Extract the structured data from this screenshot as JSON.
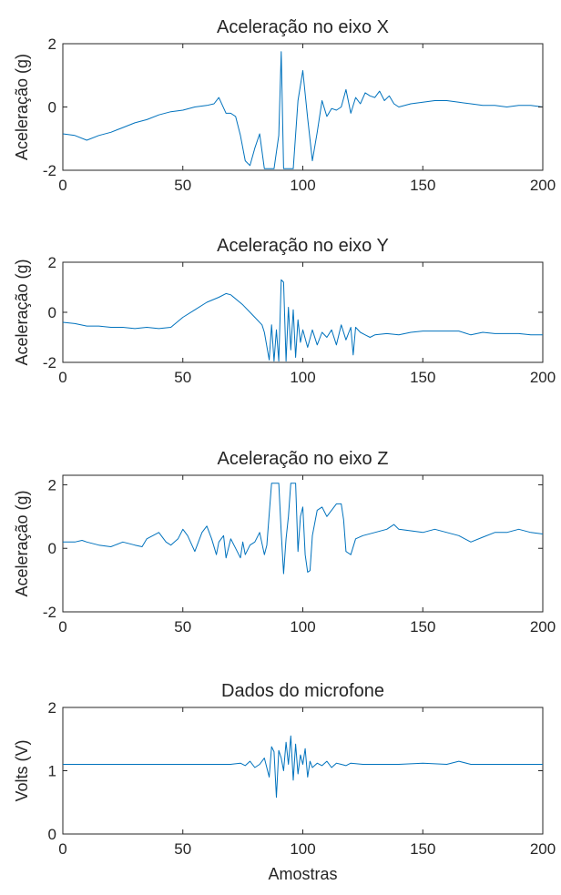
{
  "chart_data": [
    {
      "type": "line",
      "title": "Aceleração no eixo X",
      "xlabel": "",
      "ylabel": "Aceleração (g)",
      "xlim": [
        0,
        200
      ],
      "ylim": [
        -2,
        2
      ],
      "xticks": [
        0,
        50,
        100,
        150,
        200
      ],
      "yticks": [
        -2,
        0,
        2
      ],
      "grid": false,
      "series": [
        {
          "color": "#0072BD",
          "x": [
            0,
            5,
            10,
            15,
            20,
            25,
            30,
            35,
            40,
            45,
            50,
            55,
            60,
            63,
            65,
            68,
            70,
            72,
            74,
            76,
            78,
            80,
            82,
            84,
            86,
            88,
            90,
            91,
            92,
            94,
            96,
            98,
            100,
            102,
            104,
            106,
            108,
            110,
            112,
            114,
            116,
            118,
            120,
            122,
            124,
            126,
            128,
            130,
            132,
            134,
            136,
            138,
            140,
            145,
            150,
            155,
            160,
            165,
            170,
            175,
            180,
            185,
            190,
            195,
            200
          ],
          "y": [
            -0.85,
            -0.9,
            -1.05,
            -0.9,
            -0.8,
            -0.65,
            -0.5,
            -0.4,
            -0.25,
            -0.15,
            -0.1,
            0.0,
            0.05,
            0.1,
            0.3,
            -0.2,
            -0.2,
            -0.3,
            -0.9,
            -1.7,
            -1.85,
            -1.3,
            -0.85,
            -1.95,
            -1.95,
            -1.95,
            -0.9,
            1.75,
            -1.95,
            -1.95,
            -1.95,
            0.2,
            1.15,
            -0.35,
            -1.7,
            -0.8,
            0.2,
            -0.3,
            -0.05,
            -0.1,
            0.0,
            0.55,
            -0.2,
            0.3,
            0.1,
            0.45,
            0.35,
            0.3,
            0.5,
            0.2,
            0.35,
            0.1,
            0.0,
            0.1,
            0.15,
            0.2,
            0.2,
            0.15,
            0.1,
            0.05,
            0.05,
            0.0,
            0.05,
            0.05,
            0.0
          ]
        }
      ]
    },
    {
      "type": "line",
      "title": "Aceleração no eixo Y",
      "xlabel": "",
      "ylabel": "Aceleração (g)",
      "xlim": [
        0,
        200
      ],
      "ylim": [
        -2,
        2
      ],
      "xticks": [
        0,
        50,
        100,
        150,
        200
      ],
      "yticks": [
        -2,
        0,
        2
      ],
      "grid": false,
      "series": [
        {
          "color": "#0072BD",
          "x": [
            0,
            5,
            10,
            15,
            20,
            25,
            30,
            35,
            40,
            45,
            50,
            55,
            60,
            65,
            68,
            70,
            75,
            80,
            83,
            84,
            86,
            87,
            88,
            89,
            90,
            91,
            92,
            93,
            94,
            95,
            96,
            97,
            98,
            99,
            100,
            102,
            104,
            106,
            108,
            110,
            112,
            114,
            116,
            118,
            120,
            121,
            122,
            124,
            126,
            128,
            130,
            135,
            140,
            145,
            150,
            155,
            160,
            165,
            170,
            175,
            180,
            185,
            190,
            195,
            200
          ],
          "y": [
            -0.4,
            -0.45,
            -0.55,
            -0.55,
            -0.6,
            -0.6,
            -0.65,
            -0.6,
            -0.65,
            -0.6,
            -0.2,
            0.1,
            0.4,
            0.6,
            0.75,
            0.7,
            0.3,
            -0.2,
            -0.5,
            -0.8,
            -1.9,
            -0.5,
            -1.95,
            -0.7,
            -1.95,
            1.3,
            1.2,
            -1.95,
            0.2,
            -1.5,
            0.1,
            -1.8,
            -0.3,
            -1.2,
            -0.7,
            -1.4,
            -0.7,
            -1.3,
            -0.8,
            -1.0,
            -0.7,
            -1.3,
            -0.5,
            -1.1,
            -0.6,
            -1.7,
            -0.6,
            -0.8,
            -0.9,
            -1.0,
            -0.9,
            -0.85,
            -0.9,
            -0.8,
            -0.75,
            -0.75,
            -0.75,
            -0.75,
            -0.9,
            -0.8,
            -0.85,
            -0.85,
            -0.85,
            -0.9,
            -0.9
          ]
        }
      ]
    },
    {
      "type": "line",
      "title": "Aceleração no eixo Z",
      "xlabel": "",
      "ylabel": "Aceleração (g)",
      "xlim": [
        0,
        200
      ],
      "ylim": [
        -2,
        2.3
      ],
      "xticks": [
        0,
        50,
        100,
        150,
        200
      ],
      "yticks": [
        -2,
        0,
        2
      ],
      "grid": false,
      "series": [
        {
          "color": "#0072BD",
          "x": [
            0,
            5,
            8,
            10,
            15,
            20,
            25,
            30,
            33,
            35,
            40,
            43,
            45,
            48,
            50,
            52,
            55,
            58,
            60,
            62,
            64,
            65,
            67,
            68,
            70,
            72,
            74,
            75,
            76,
            78,
            80,
            82,
            84,
            85,
            87,
            88,
            90,
            91,
            92,
            93,
            94,
            95,
            96,
            97,
            98,
            99,
            100,
            101,
            102,
            103,
            104,
            106,
            108,
            110,
            112,
            114,
            116,
            117,
            118,
            120,
            122,
            125,
            130,
            135,
            138,
            140,
            145,
            150,
            155,
            160,
            165,
            170,
            175,
            180,
            185,
            190,
            195,
            200
          ],
          "y": [
            0.2,
            0.2,
            0.25,
            0.2,
            0.1,
            0.05,
            0.2,
            0.1,
            0.05,
            0.3,
            0.5,
            0.2,
            0.1,
            0.3,
            0.6,
            0.4,
            -0.1,
            0.5,
            0.7,
            0.3,
            -0.2,
            0.2,
            0.4,
            -0.3,
            0.3,
            0.0,
            -0.3,
            0.2,
            -0.2,
            0.1,
            0.2,
            0.5,
            -0.2,
            0.1,
            2.05,
            2.05,
            2.05,
            0.5,
            -0.8,
            0.3,
            1.0,
            2.05,
            2.05,
            2.05,
            -0.1,
            1.0,
            1.3,
            -0.2,
            -0.75,
            -0.7,
            0.4,
            1.2,
            1.3,
            1.0,
            1.2,
            1.4,
            1.4,
            0.9,
            -0.1,
            -0.2,
            0.3,
            0.4,
            0.5,
            0.6,
            0.75,
            0.6,
            0.55,
            0.5,
            0.6,
            0.5,
            0.4,
            0.2,
            0.35,
            0.5,
            0.5,
            0.6,
            0.5,
            0.45
          ]
        }
      ]
    },
    {
      "type": "line",
      "title": "Dados do microfone",
      "xlabel": "Amostras",
      "ylabel": "Volts (V)",
      "xlim": [
        0,
        200
      ],
      "ylim": [
        0,
        2
      ],
      "xticks": [
        0,
        50,
        100,
        150,
        200
      ],
      "yticks": [
        0,
        1,
        2
      ],
      "grid": false,
      "series": [
        {
          "color": "#0072BD",
          "x": [
            0,
            20,
            40,
            60,
            70,
            74,
            76,
            78,
            80,
            82,
            84,
            86,
            87,
            88,
            89,
            90,
            91,
            92,
            93,
            94,
            95,
            96,
            97,
            98,
            99,
            100,
            101,
            102,
            103,
            104,
            106,
            108,
            110,
            112,
            114,
            116,
            118,
            120,
            125,
            130,
            140,
            150,
            160,
            165,
            170,
            180,
            190,
            200
          ],
          "y": [
            1.1,
            1.1,
            1.1,
            1.1,
            1.1,
            1.12,
            1.08,
            1.15,
            1.05,
            1.1,
            1.2,
            0.9,
            1.38,
            1.3,
            0.58,
            1.32,
            1.2,
            1.0,
            1.45,
            1.1,
            1.55,
            0.85,
            1.42,
            0.95,
            1.25,
            1.1,
            1.35,
            0.9,
            1.15,
            1.05,
            1.12,
            1.08,
            1.15,
            1.05,
            1.12,
            1.1,
            1.08,
            1.12,
            1.1,
            1.1,
            1.1,
            1.12,
            1.1,
            1.15,
            1.1,
            1.1,
            1.1,
            1.1
          ]
        }
      ]
    }
  ]
}
